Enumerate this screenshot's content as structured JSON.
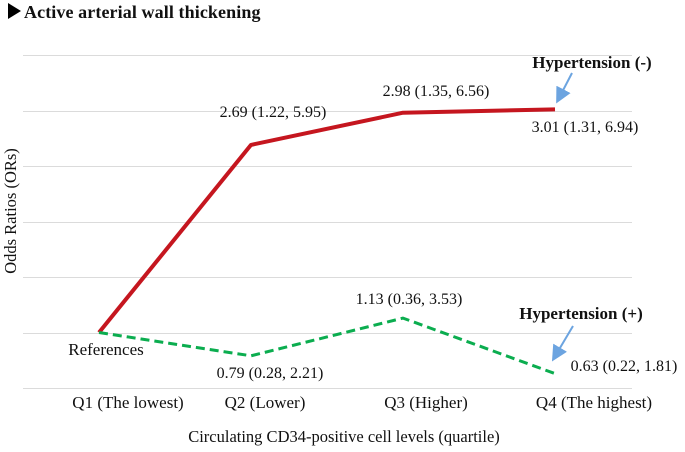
{
  "title": {
    "text": "Active arterial wall thickening"
  },
  "chart_data": {
    "type": "line",
    "title": "Active arterial wall thickening",
    "xlabel": "Circulating CD34-positive cell levels (quartile)",
    "ylabel": "Odds Ratios (ORs)",
    "reference_label": "References",
    "categories": [
      "Q1 (The lowest)",
      "Q2 (Lower)",
      "Q3 (Higher)",
      "Q4 (The highest)"
    ],
    "ylim": [
      0.5,
      3.5
    ],
    "gridline_step": 0.5,
    "grid": true,
    "legend_position": "inline-annotations",
    "series": [
      {
        "name": "Hypertension (-)",
        "line_style": "solid",
        "color": "#C5161F",
        "values": [
          1.0,
          2.69,
          2.98,
          3.01
        ],
        "ci_low": [
          null,
          1.22,
          1.35,
          1.31
        ],
        "ci_high": [
          null,
          5.95,
          6.56,
          6.94
        ],
        "point_labels": [
          "",
          "2.69 (1.22, 5.95)",
          "2.98 (1.35, 6.56)",
          "3.01 (1.31, 6.94)"
        ]
      },
      {
        "name": "Hypertension (+)",
        "line_style": "dashed",
        "color": "#0BAD4F",
        "values": [
          1.0,
          0.79,
          1.13,
          0.63
        ],
        "ci_low": [
          null,
          0.28,
          0.36,
          0.22
        ],
        "ci_high": [
          null,
          2.21,
          3.53,
          1.81
        ],
        "point_labels": [
          "",
          "0.79 (0.28, 2.21)",
          "1.13 (0.36, 3.53)",
          "0.63 (0.22, 1.81)"
        ]
      }
    ]
  },
  "annotations": {
    "arrow_color": "#6CA4E0"
  }
}
